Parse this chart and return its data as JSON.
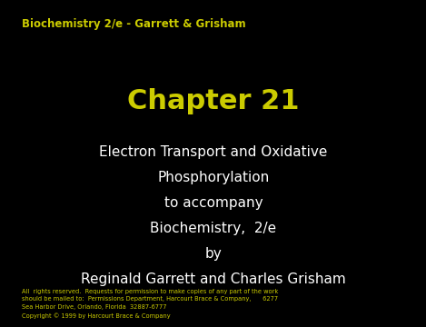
{
  "background_color": "#000000",
  "header_text": "Biochemistry 2/e - Garrett & Grisham",
  "header_color": "#cccc00",
  "header_fontsize": 8.5,
  "chapter_text": "Chapter 21",
  "chapter_color": "#cccc00",
  "chapter_fontsize": 22,
  "subtitle_lines": [
    "Electron Transport and Oxidative",
    "Phosphorylation",
    "to accompany",
    "Biochemistry,  2/e",
    "by",
    "Reginald Garrett and Charles Grisham"
  ],
  "subtitle_color": "#ffffff",
  "subtitle_fontsize": 11,
  "footer_lines": [
    "All  rights reserved.  Requests for permission to make copies of any part of the work",
    "should be mailed to:  Permissions Department, Harcourt Brace & Company,      6277",
    "Sea Harbor Drive, Orlando, Florida  32887-6777",
    "Copyright © 1999 by Harcourt Brace & Company"
  ],
  "footer_color": "#cccc00",
  "footer_fontsize": 4.8
}
